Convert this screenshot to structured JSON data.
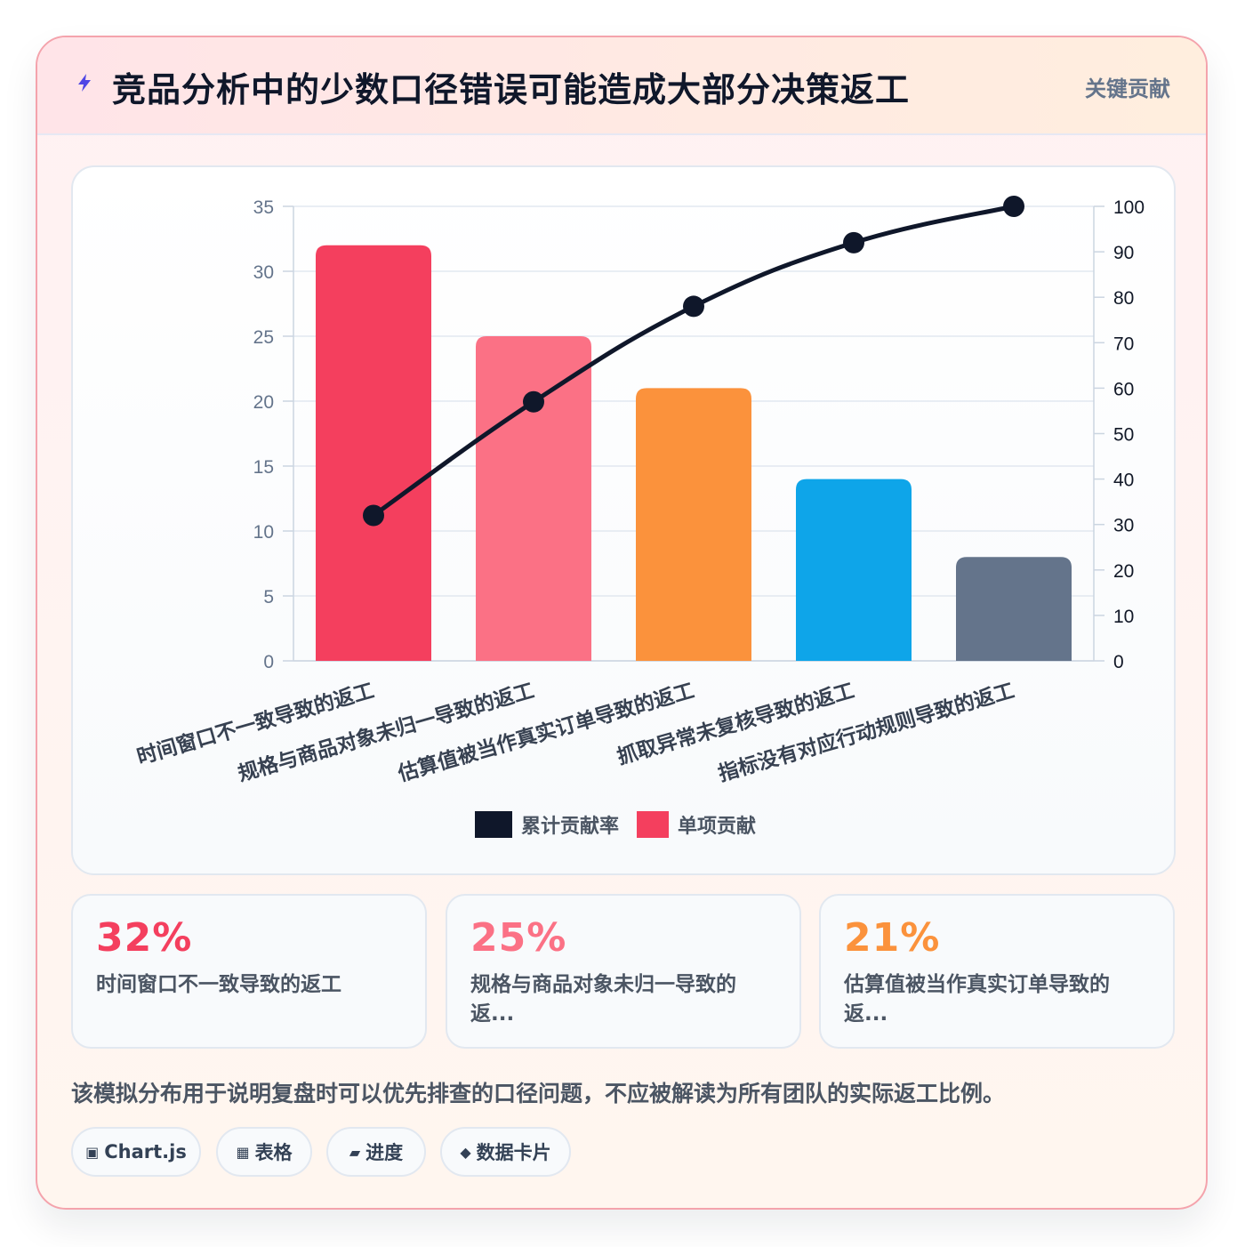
{
  "header": {
    "title": "竞品分析中的少数口径错误可能造成大部分决策返工",
    "tag": "关键贡献",
    "icon": "lightning-icon"
  },
  "chart_data": {
    "type": "bar",
    "categories": [
      "时间窗口不一致导致的返工",
      "规格与商品对象未归一导致的返工",
      "估算值被当作真实订单导致的返工",
      "抓取异常未复核导致的返工",
      "指标没有对应行动规则导致的返工"
    ],
    "series": [
      {
        "name": "单项贡献",
        "type": "bar",
        "axis": "left",
        "values": [
          32,
          25,
          21,
          14,
          8
        ],
        "colors": [
          "#f43f5e",
          "#fb7185",
          "#fb923c",
          "#0ea5e9",
          "#64748b"
        ]
      },
      {
        "name": "累计贡献率",
        "type": "line",
        "axis": "right",
        "values": [
          32,
          57,
          78,
          92,
          100
        ],
        "color": "#0f172a"
      }
    ],
    "y_left": {
      "ylim": [
        0,
        35
      ],
      "ticks": [
        0,
        5,
        10,
        15,
        20,
        25,
        30,
        35
      ]
    },
    "y_right": {
      "ylim": [
        0,
        100
      ],
      "ticks": [
        0,
        10,
        20,
        30,
        40,
        50,
        60,
        70,
        80,
        90,
        100
      ]
    },
    "legend": {
      "position": "bottom",
      "entries": [
        {
          "label": "累计贡献率",
          "color": "#0f172a"
        },
        {
          "label": "单项贡献",
          "color": "#f43f5e"
        }
      ]
    },
    "grid": true
  },
  "stats": [
    {
      "value": "32%",
      "label": "时间窗口不一致导致的返工",
      "color": "#f43f5e"
    },
    {
      "value": "25%",
      "label": "规格与商品对象未归一导致的返...",
      "color": "#fb7185"
    },
    {
      "value": "21%",
      "label": "估算值被当作真实订单导致的返...",
      "color": "#fb923c"
    }
  ],
  "footnote": "该模拟分布用于说明复盘时可以优先排查的口径问题，不应被解读为所有团队的实际返工比例。",
  "chips": [
    {
      "icon": "▣",
      "label": "Chart.js"
    },
    {
      "icon": "▦",
      "label": "表格"
    },
    {
      "icon": "▰",
      "label": "进度"
    },
    {
      "icon": "◆",
      "label": "数据卡片"
    }
  ]
}
